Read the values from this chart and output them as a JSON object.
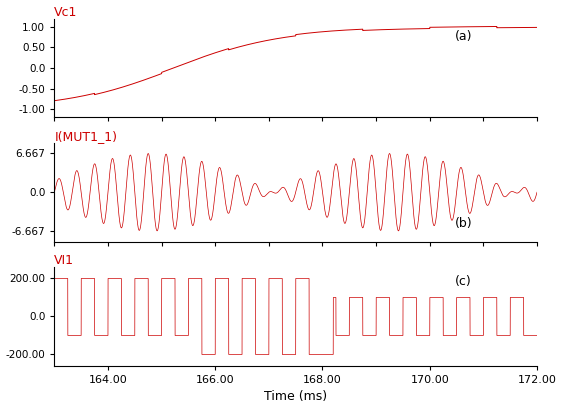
{
  "title_a": "Vc1",
  "title_b": "I(MUT1_1)",
  "title_c": "VI1",
  "xlabel": "Time (ms)",
  "label_a": "(a)",
  "label_b": "(b)",
  "label_c": "(c)",
  "xmin": 163.0,
  "xmax": 172.0,
  "xticks": [
    164.0,
    166.0,
    168.0,
    170.0,
    172.0
  ],
  "yticks_a": [
    -1.0,
    -0.5,
    0.0,
    0.5,
    1.0
  ],
  "ylim_a": [
    -1.2,
    1.2
  ],
  "yticks_b": [
    -6.667,
    0.0,
    6.667
  ],
  "ylim_b": [
    -8.5,
    8.5
  ],
  "yticks_c": [
    -200.0,
    0.0,
    200.0
  ],
  "ylim_c": [
    -260,
    260
  ],
  "line_color": "#cc0000",
  "title_color": "#cc0000",
  "bg_color": "#ffffff",
  "n_points": 50000,
  "carrier_freq_b_hz": 3000,
  "carrier_freq_c_hz": 2000
}
